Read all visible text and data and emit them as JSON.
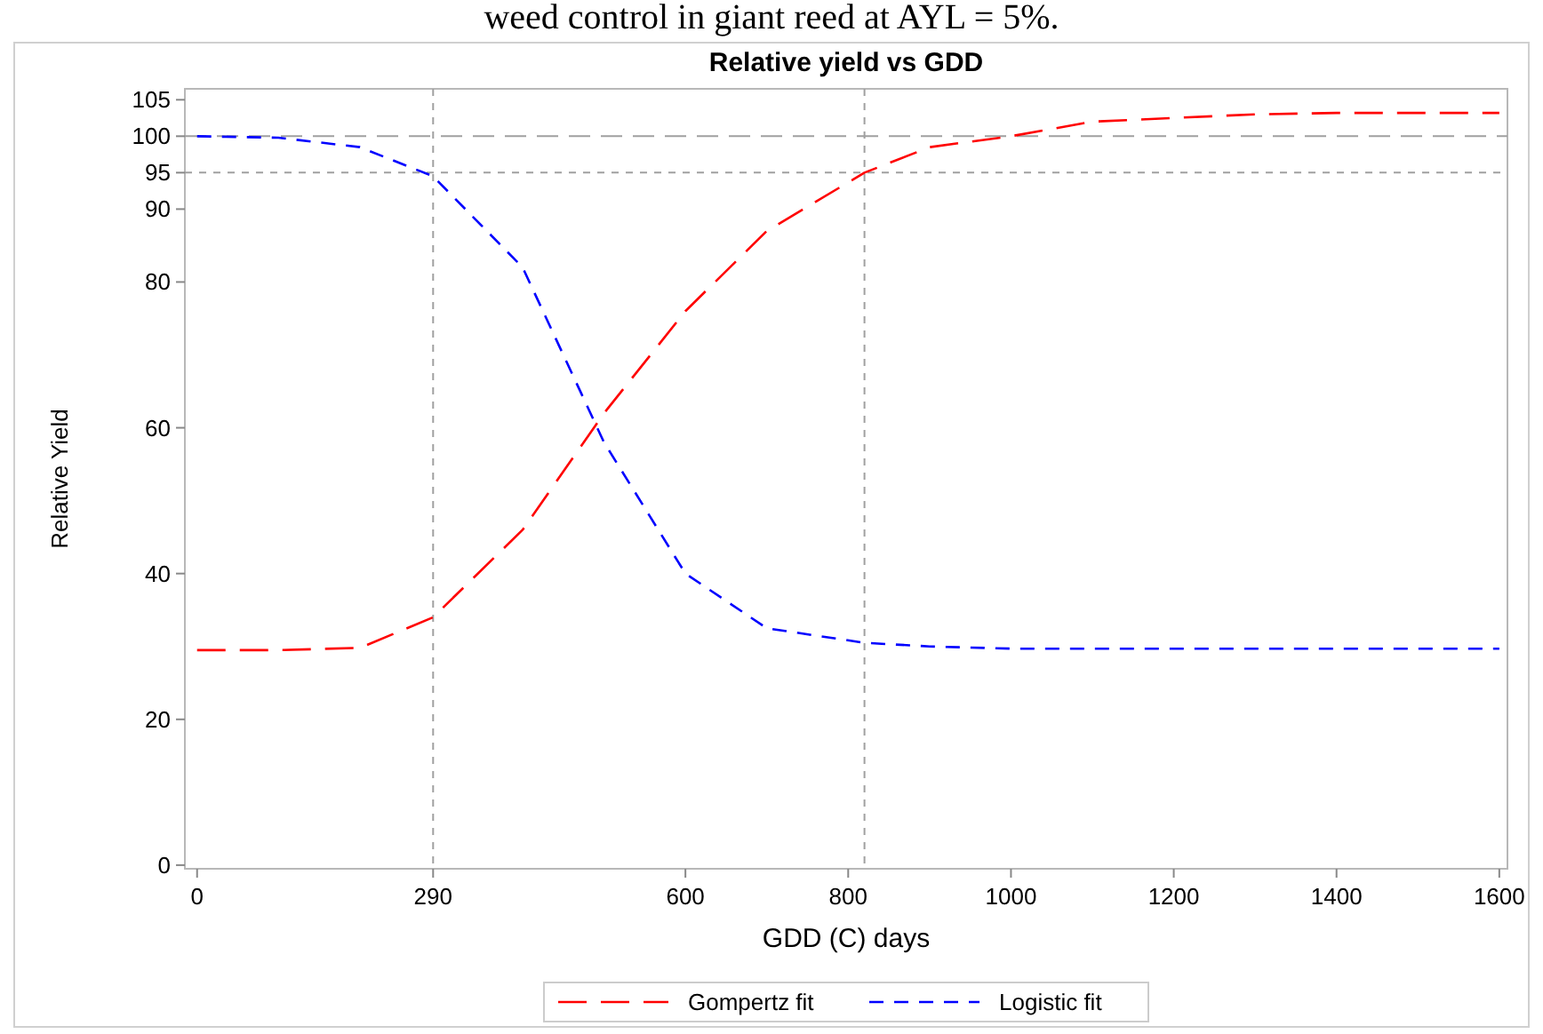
{
  "chart_data": {
    "type": "line",
    "title": "Relative yield vs GDD",
    "xlabel": "GDD (C) days",
    "ylabel": "Relative Yield",
    "annotations": [
      "weed control in giant reed at AYL = 5%."
    ],
    "xlim": [
      -15,
      1610
    ],
    "ylim": [
      -0.5,
      106.5
    ],
    "xticks": [
      0,
      290,
      600,
      800,
      1000,
      1200,
      1400,
      1600
    ],
    "yticks": [
      0,
      20,
      40,
      60,
      80,
      90,
      95,
      100,
      105
    ],
    "grid": false,
    "legend": "bottom",
    "ref_lines": [
      {
        "axis": "y",
        "value": 100,
        "line_style": "dashed",
        "color": "#a0a0a0"
      },
      {
        "axis": "y",
        "value": 95,
        "line_style": "dotted",
        "color": "#a0a0a0"
      },
      {
        "axis": "x",
        "value": 290,
        "line_style": "dotted",
        "color": "#a0a0a0"
      },
      {
        "axis": "x",
        "value": 820,
        "line_style": "dotted",
        "color": "#a0a0a0"
      }
    ],
    "series": [
      {
        "name": "Gompertz fit",
        "color": "#ff0000",
        "line_style": "dashed",
        "x": [
          0,
          100,
          200,
          290,
          400,
          500,
          600,
          700,
          820,
          900,
          1000,
          1100,
          1200,
          1300,
          1400,
          1600
        ],
        "values": [
          29.5,
          29.5,
          29.8,
          34,
          46,
          62,
          76,
          87,
          95,
          98.5,
          100,
          102,
          102.5,
          103,
          103.2,
          103.2
        ]
      },
      {
        "name": "Logistic fit",
        "color": "#0000ff",
        "line_style": "dashed",
        "x": [
          0,
          100,
          200,
          290,
          400,
          500,
          600,
          700,
          820,
          900,
          1000,
          1100,
          1200,
          1300,
          1400,
          1600
        ],
        "values": [
          100,
          99.8,
          98.5,
          94.5,
          82,
          58,
          40,
          32.5,
          30.5,
          30,
          29.7,
          29.7,
          29.7,
          29.7,
          29.7,
          29.7
        ]
      }
    ]
  }
}
